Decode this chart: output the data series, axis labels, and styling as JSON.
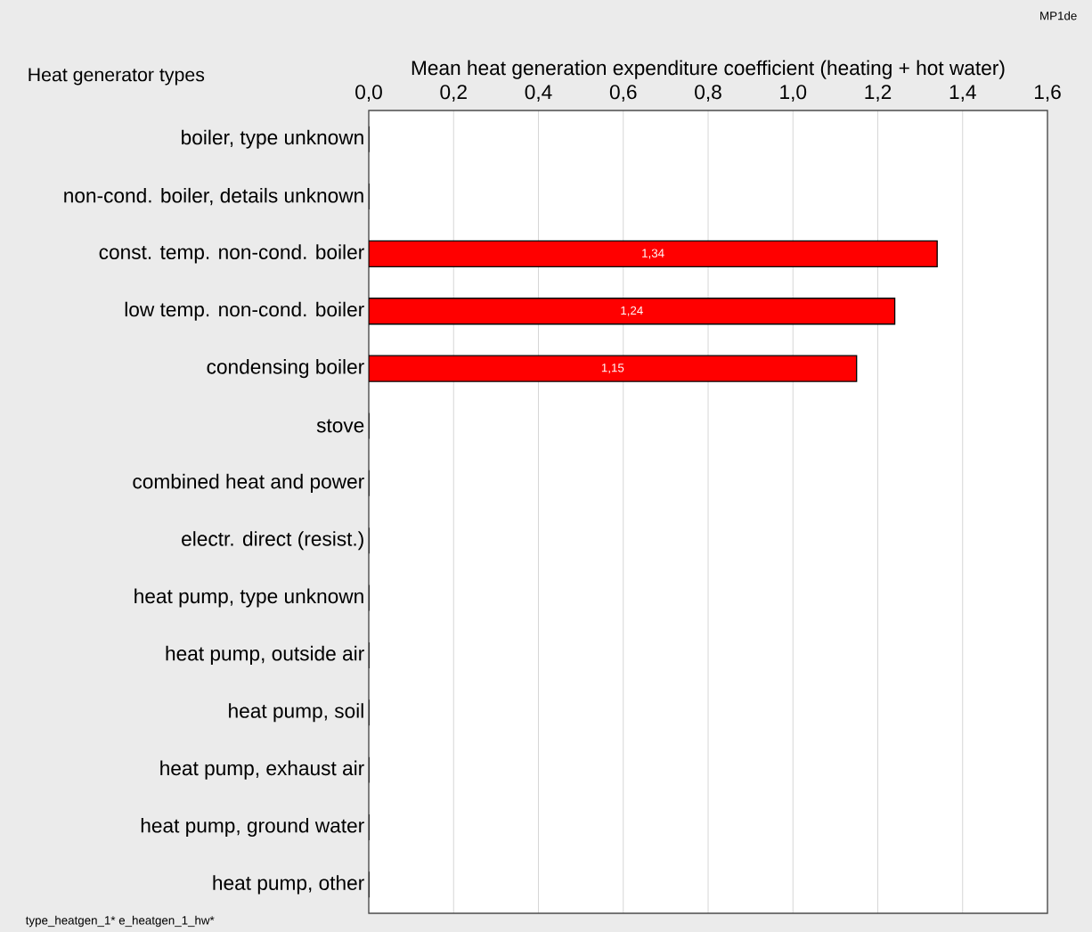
{
  "chart_data": {
    "type": "bar",
    "orientation": "horizontal",
    "xlabel": "Mean heat generation expenditure coefficient (heating + hot water)",
    "ylabel": "Heat generator types",
    "categories": [
      "boiler, type unknown",
      "non-cond. boiler, details unknown",
      "const. temp. non-cond. boiler",
      "low temp. non-cond. boiler",
      "condensing boiler",
      "stove",
      "combined heat and power",
      "electr. direct (resist.)",
      "heat pump, type unknown",
      "heat pump, outside air",
      "heat pump, soil",
      "heat pump, exhaust air",
      "heat pump, ground water",
      "heat pump, other"
    ],
    "values": [
      0,
      0,
      1.34,
      1.24,
      1.15,
      0,
      0,
      0,
      0,
      0,
      0,
      0,
      0,
      0
    ],
    "value_labels": [
      null,
      null,
      "1,34",
      "1,24",
      "1,15",
      null,
      null,
      null,
      null,
      null,
      null,
      null,
      null,
      null
    ],
    "color": "#ff0000",
    "xlim": [
      0,
      1.6
    ],
    "xticks": [
      {
        "value": 0,
        "label": "0,0"
      },
      {
        "value": 0.2,
        "label": "0,2"
      },
      {
        "value": 0.4,
        "label": "0,4"
      },
      {
        "value": 0.6,
        "label": "0,6"
      },
      {
        "value": 0.8,
        "label": "0,8"
      },
      {
        "value": 1.0,
        "label": "1,0"
      },
      {
        "value": 1.2,
        "label": "1,2"
      },
      {
        "value": 1.4,
        "label": "1,4"
      },
      {
        "value": 1.6,
        "label": "1,6"
      }
    ],
    "grid": "x",
    "annotations": [
      "MP1de",
      "type_heatgen_1* e_heatgen_1_hw*"
    ]
  }
}
